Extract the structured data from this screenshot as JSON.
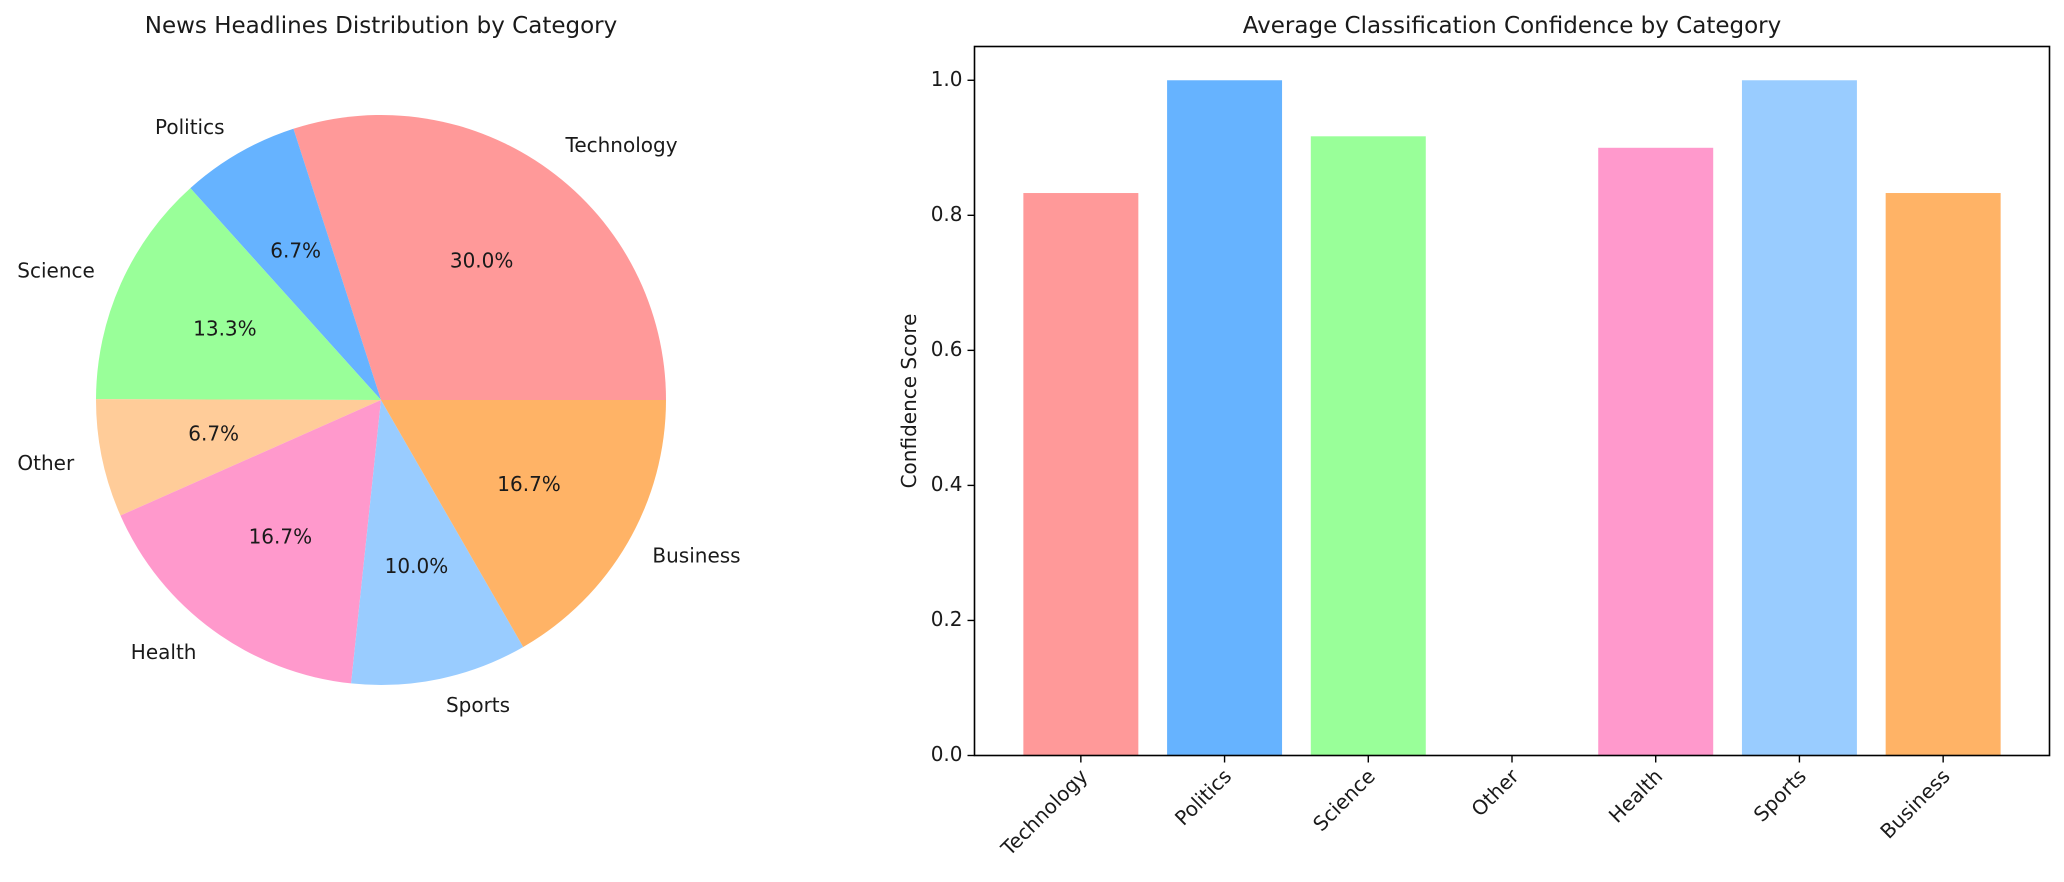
{
  "chart_data": [
    {
      "type": "pie",
      "title": "News Headlines Distribution by Category",
      "slices": [
        {
          "label": "Technology",
          "value": 30.0,
          "pct_label": "30.0%",
          "color": "#ff9999"
        },
        {
          "label": "Politics",
          "value": 6.7,
          "pct_label": "6.7%",
          "color": "#66b3ff"
        },
        {
          "label": "Science",
          "value": 13.3,
          "pct_label": "13.3%",
          "color": "#99ff99"
        },
        {
          "label": "Other",
          "value": 6.7,
          "pct_label": "6.7%",
          "color": "#ffcc99"
        },
        {
          "label": "Health",
          "value": 16.7,
          "pct_label": "16.7%",
          "color": "#ff99cc"
        },
        {
          "label": "Sports",
          "value": 10.0,
          "pct_label": "10.0%",
          "color": "#99ccff"
        },
        {
          "label": "Business",
          "value": 16.7,
          "pct_label": "16.7%",
          "color": "#ffb366"
        }
      ],
      "start_angle_deg": 0,
      "direction": "counterclockwise"
    },
    {
      "type": "bar",
      "title": "Average Classification Confidence by Category",
      "xlabel": "",
      "ylabel": "Confidence Score",
      "categories": [
        "Technology",
        "Politics",
        "Science",
        "Other",
        "Health",
        "Sports",
        "Business"
      ],
      "values": [
        0.833,
        1.0,
        0.917,
        0.0,
        0.9,
        1.0,
        0.833
      ],
      "colors": [
        "#ff9999",
        "#66b3ff",
        "#99ff99",
        "#ffcc99",
        "#ff99cc",
        "#99ccff",
        "#ffb366"
      ],
      "ylim": [
        0,
        1.05
      ],
      "yticks": [
        "0.0",
        "0.2",
        "0.4",
        "0.6",
        "0.8",
        "1.0"
      ],
      "xtick_rotation_deg": 45,
      "grid": false
    }
  ]
}
